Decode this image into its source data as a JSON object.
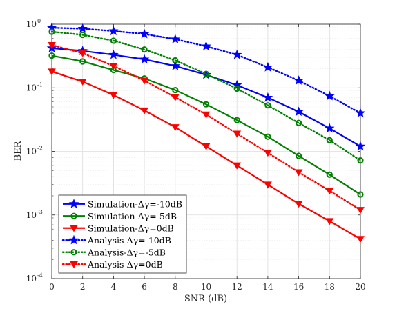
{
  "chart_data": {
    "type": "line",
    "xlabel": "SNR (dB)",
    "ylabel": "BER",
    "x_scale": "linear",
    "y_scale": "log",
    "xlim": [
      0,
      20
    ],
    "ylim": [
      0.0001,
      1
    ],
    "x_ticks": [
      0,
      2,
      4,
      6,
      8,
      10,
      12,
      14,
      16,
      18,
      20
    ],
    "y_ticks": [
      {
        "base": "10",
        "exp": "0",
        "value": 1
      },
      {
        "base": "10",
        "exp": "-1",
        "value": 0.1
      },
      {
        "base": "10",
        "exp": "-2",
        "value": 0.01
      },
      {
        "base": "10",
        "exp": "-3",
        "value": 0.001
      },
      {
        "base": "10",
        "exp": "-4",
        "value": 0.0001
      }
    ],
    "grid": true,
    "minor_grid": true,
    "legend_position": "lower-left",
    "x": [
      0,
      2,
      4,
      6,
      8,
      10,
      12,
      14,
      16,
      18,
      20
    ],
    "series": [
      {
        "name": "Simulation-Δγ=-10dB",
        "color": "#0000ff",
        "line": "solid",
        "marker": "star",
        "values": [
          0.42,
          0.38,
          0.33,
          0.28,
          0.22,
          0.16,
          0.11,
          0.07,
          0.042,
          0.023,
          0.012
        ]
      },
      {
        "name": "Simulation-Δγ=-5dB",
        "color": "#008000",
        "line": "solid",
        "marker": "circle",
        "values": [
          0.32,
          0.26,
          0.19,
          0.14,
          0.092,
          0.055,
          0.031,
          0.017,
          0.0085,
          0.0043,
          0.0021
        ]
      },
      {
        "name": "Simulation-Δγ=0dB",
        "color": "#ff0000",
        "line": "solid",
        "marker": "triangle-down",
        "values": [
          0.18,
          0.125,
          0.077,
          0.044,
          0.024,
          0.012,
          0.006,
          0.003,
          0.0015,
          0.0008,
          0.00042
        ]
      },
      {
        "name": "Analysis-Δγ=-10dB",
        "color": "#0000ff",
        "line": "dotted",
        "marker": "star",
        "values": [
          0.88,
          0.85,
          0.78,
          0.7,
          0.58,
          0.45,
          0.33,
          0.21,
          0.13,
          0.074,
          0.04
        ]
      },
      {
        "name": "Analysis-Δγ=-5dB",
        "color": "#008000",
        "line": "dotted",
        "marker": "circle",
        "values": [
          0.76,
          0.68,
          0.55,
          0.4,
          0.27,
          0.165,
          0.097,
          0.053,
          0.028,
          0.015,
          0.0072
        ]
      },
      {
        "name": "Analysis-Δγ=0dB",
        "color": "#ff0000",
        "line": "dotted",
        "marker": "triangle-down",
        "values": [
          0.47,
          0.35,
          0.22,
          0.13,
          0.071,
          0.038,
          0.019,
          0.0095,
          0.0047,
          0.0024,
          0.0012
        ]
      }
    ]
  }
}
